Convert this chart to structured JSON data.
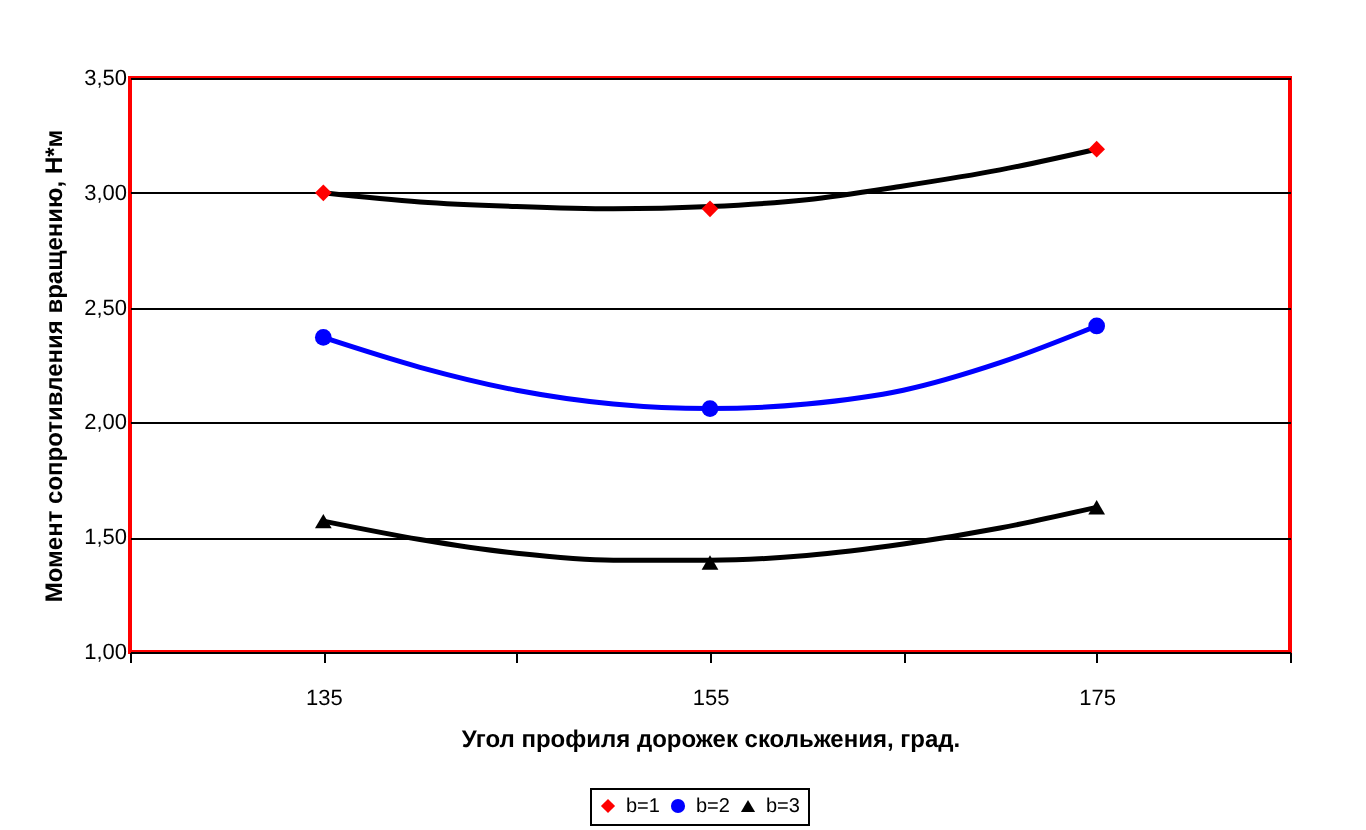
{
  "chart_data": {
    "type": "scatter",
    "xlabel": "Угол профиля дорожек скольжения, град.",
    "ylabel": "Момент сопротивления вращению, Н*м",
    "xlim": [
      125,
      185
    ],
    "xticks": [
      {
        "value": 125,
        "label": null
      },
      135,
      {
        "value": 145,
        "label": null
      },
      155,
      {
        "value": 165,
        "label": null
      },
      175,
      {
        "value": 185,
        "label": null
      }
    ],
    "ylim": [
      1,
      3.5
    ],
    "yticks": [
      {
        "value": 1,
        "label": "1,00"
      },
      {
        "value": 1.5,
        "label": "1,50"
      },
      {
        "value": 2,
        "label": "2,00"
      },
      {
        "value": 2.5,
        "label": "2,50"
      },
      {
        "value": 3,
        "label": "3,00"
      },
      {
        "value": 3.5,
        "label": "3,50"
      }
    ],
    "grid": "y",
    "legend": "bottom",
    "x": [
      135,
      155,
      175
    ],
    "series": [
      {
        "name": "b=1",
        "type": "scatter",
        "marker": "diamond",
        "color": "#ff0000",
        "values": [
          3.0,
          2.93,
          3.19
        ]
      },
      {
        "name": "b=2",
        "type": "scatter",
        "marker": "circle",
        "color": "#0000ff",
        "values": [
          2.37,
          2.06,
          2.42
        ]
      },
      {
        "name": "b=3",
        "type": "scatter",
        "marker": "triangle",
        "color": "#000000",
        "values": [
          1.57,
          1.39,
          1.63
        ]
      },
      {
        "type": "line",
        "marker": "none",
        "line_style": "solid",
        "color": "#000000",
        "x": [
          135,
          140,
          145,
          150,
          155,
          160,
          165,
          170,
          175
        ],
        "values": [
          3.0,
          2.96,
          2.94,
          2.93,
          2.94,
          2.97,
          3.03,
          3.1,
          3.19
        ]
      },
      {
        "type": "line",
        "marker": "none",
        "line_style": "solid",
        "color": "#0000ff",
        "x": [
          135,
          140,
          145,
          150,
          155,
          160,
          165,
          170,
          175
        ],
        "values": [
          2.37,
          2.24,
          2.14,
          2.08,
          2.06,
          2.08,
          2.14,
          2.26,
          2.42
        ]
      },
      {
        "type": "line",
        "marker": "none",
        "line_style": "solid",
        "color": "#000000",
        "x": [
          135,
          140,
          145,
          150,
          155,
          160,
          165,
          170,
          175
        ],
        "values": [
          1.57,
          1.49,
          1.43,
          1.4,
          1.4,
          1.42,
          1.47,
          1.54,
          1.63
        ]
      }
    ]
  }
}
